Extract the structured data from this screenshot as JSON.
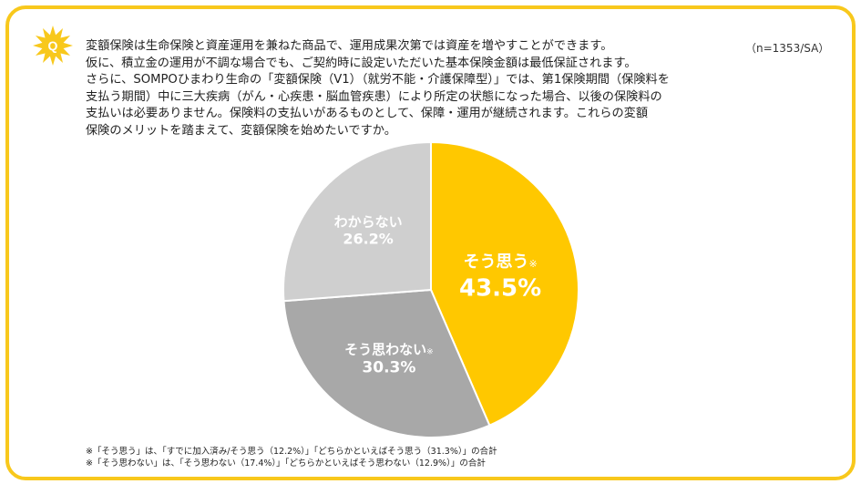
{
  "header": {
    "badge_letter": "Q",
    "question_lines": [
      "変額保険は生命保険と資産運用を兼ねた商品で、運用成果次第では資産を増やすことができます。",
      "仮に、積立金の運用が不調な場合でも、ご契約時に設定いただいた基本保険金額は最低保証されます。",
      "さらに、SOMPOひまわり生命の「変額保険（V1）（就労不能・介護保障型）」では、第1保険期間（保険料を",
      "支払う期間）中に三大疾病（がん・心疾患・脳血管疾患）により所定の状態になった場合、以後の保険料の",
      "支払いは必要ありません。保険料の支払いがあるものとして、保障・運用が継続されます。これらの変額",
      "保険のメリットを踏まえて、変額保険を始めたいですか。"
    ],
    "sample_note": "（n=1353/SA）"
  },
  "colors": {
    "frame": "#f8c81c",
    "badge": "#f8c81c",
    "agree": "#ffc800",
    "disagree": "#a8a8a8",
    "unknown": "#cfcfcf",
    "label_text": "#ffffff"
  },
  "chart_data": {
    "type": "pie",
    "start_angle_deg": 0,
    "direction": "clockwise",
    "slices": [
      {
        "label": "そう思う",
        "mark": "※",
        "value": 43.5,
        "value_label": "43.5%",
        "color": "#ffc800"
      },
      {
        "label": "そう思わない",
        "mark": "※",
        "value": 30.3,
        "value_label": "30.3%",
        "color": "#a8a8a8"
      },
      {
        "label": "わからない",
        "mark": "",
        "value": 26.2,
        "value_label": "26.2%",
        "color": "#cfcfcf"
      }
    ]
  },
  "footnotes": [
    "※「そう思う」は、「すでに加入済み/そう思う（12.2%）」「どちらかといえばそう思う（31.3%）」の合計",
    "※「そう思わない」は、「そう思わない（17.4%）」「どちらかといえばそう思わない（12.9%）」の合計"
  ]
}
